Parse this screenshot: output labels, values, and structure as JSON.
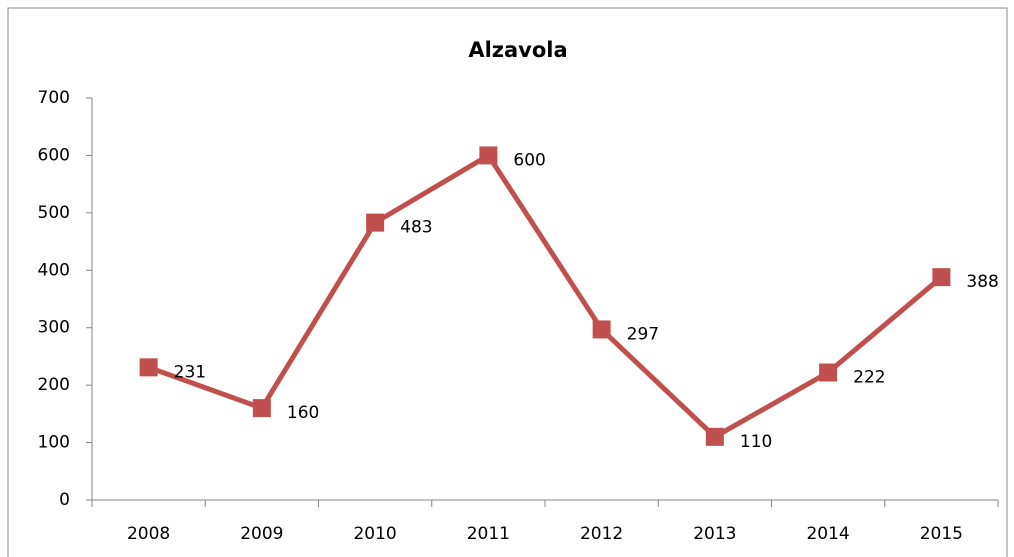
{
  "chart_data": {
    "type": "line",
    "title": "Alzavola",
    "categories": [
      "2008",
      "2009",
      "2010",
      "2011",
      "2012",
      "2013",
      "2014",
      "2015"
    ],
    "series": [
      {
        "name": "Alzavola",
        "color": "#c0504d",
        "values": [
          231,
          160,
          483,
          600,
          297,
          110,
          222,
          388
        ]
      }
    ],
    "ylim": [
      0,
      700
    ],
    "yticks": [
      0,
      100,
      200,
      300,
      400,
      500,
      600,
      700
    ],
    "data_labels": true
  }
}
